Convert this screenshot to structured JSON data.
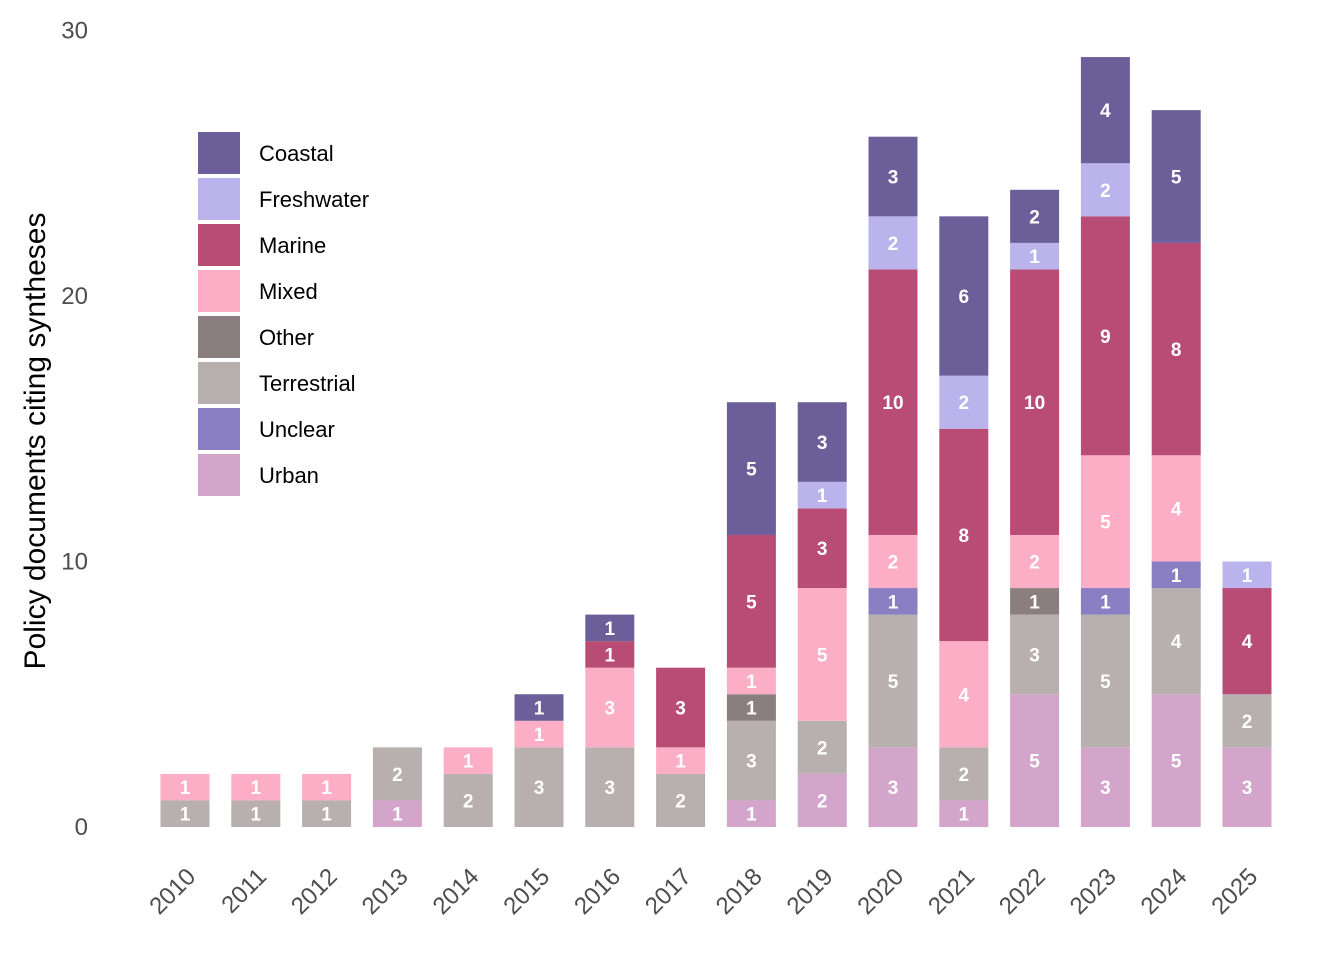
{
  "chart_data": {
    "type": "bar",
    "stacked": true,
    "title": "",
    "xlabel": "",
    "ylabel": "Policy documents citing syntheses",
    "ylim": [
      0,
      30
    ],
    "yticks": [
      0,
      10,
      20,
      30
    ],
    "grid": false,
    "legend_position": "top-left",
    "show_segment_labels": true,
    "categories": [
      "2010",
      "2011",
      "2012",
      "2013",
      "2014",
      "2015",
      "2016",
      "2017",
      "2018",
      "2019",
      "2020",
      "2021",
      "2022",
      "2023",
      "2024",
      "2025"
    ],
    "series": [
      {
        "name": "Urban",
        "color": "#D4A5CB",
        "values": [
          0,
          0,
          0,
          1,
          0,
          0,
          0,
          0,
          1,
          2,
          3,
          1,
          5,
          3,
          5,
          3
        ]
      },
      {
        "name": "Terrestrial",
        "color": "#B8AFAF",
        "values": [
          1,
          1,
          1,
          2,
          2,
          3,
          3,
          2,
          3,
          2,
          5,
          2,
          3,
          5,
          4,
          2
        ]
      },
      {
        "name": "Unclear",
        "color": "#8A7FC2",
        "values": [
          0,
          0,
          0,
          0,
          0,
          0,
          0,
          0,
          0,
          0,
          1,
          0,
          0,
          1,
          1,
          0
        ]
      },
      {
        "name": "Other",
        "color": "#8B7E7E",
        "values": [
          0,
          0,
          0,
          0,
          0,
          0,
          0,
          0,
          1,
          0,
          0,
          0,
          1,
          0,
          0,
          0
        ]
      },
      {
        "name": "Mixed",
        "color": "#FDAEC7",
        "values": [
          1,
          1,
          1,
          0,
          1,
          1,
          3,
          1,
          1,
          5,
          2,
          4,
          2,
          5,
          4,
          0
        ]
      },
      {
        "name": "Marine",
        "color": "#B84C74",
        "values": [
          0,
          0,
          0,
          0,
          0,
          0,
          1,
          3,
          5,
          3,
          10,
          8,
          10,
          9,
          8,
          4
        ]
      },
      {
        "name": "Freshwater",
        "color": "#BBB3EC",
        "values": [
          0,
          0,
          0,
          0,
          0,
          0,
          0,
          0,
          0,
          1,
          2,
          2,
          1,
          2,
          0,
          1
        ]
      },
      {
        "name": "Coastal",
        "color": "#6C5F99",
        "values": [
          0,
          0,
          0,
          0,
          0,
          1,
          1,
          0,
          5,
          3,
          3,
          6,
          2,
          4,
          5,
          0
        ]
      }
    ],
    "legend_order": [
      "Coastal",
      "Freshwater",
      "Marine",
      "Mixed",
      "Other",
      "Terrestrial",
      "Unclear",
      "Urban"
    ]
  }
}
